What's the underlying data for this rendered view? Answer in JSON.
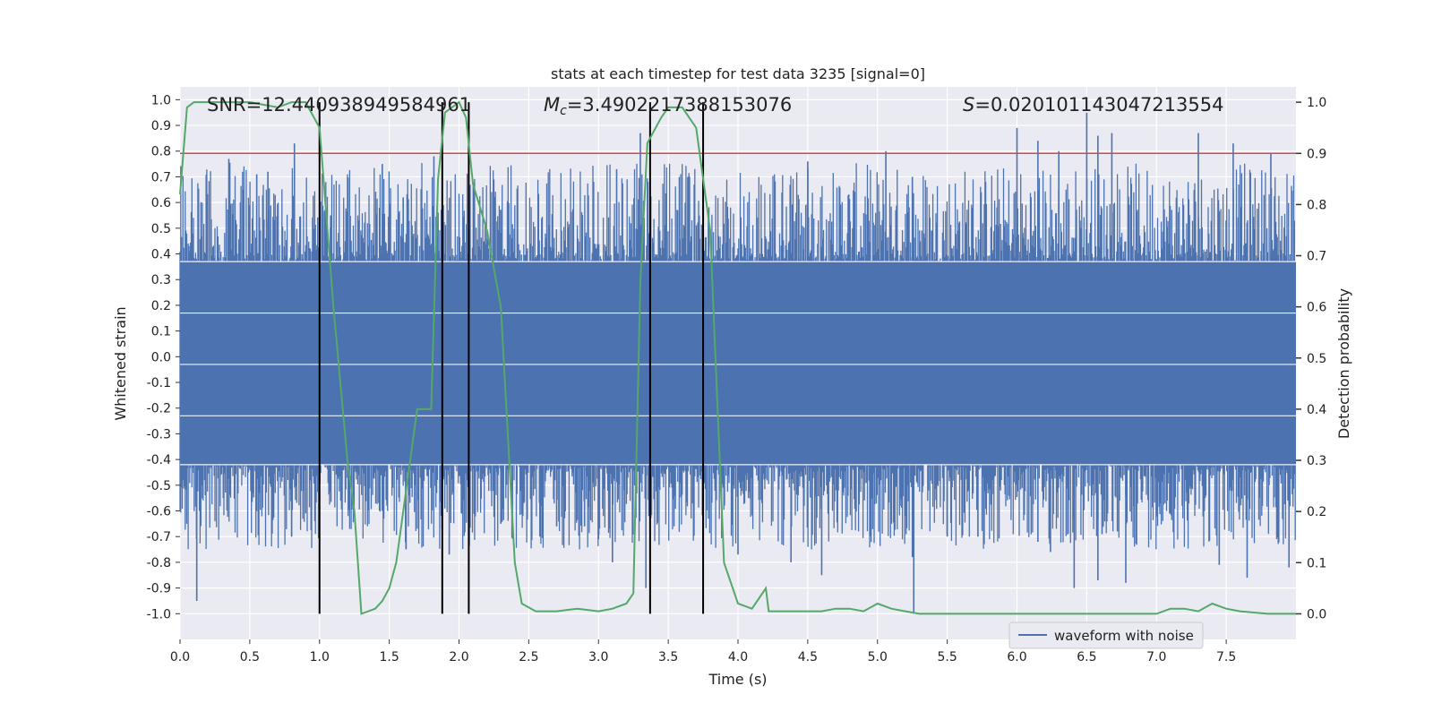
{
  "chart_data": {
    "type": "line",
    "title": "stats at each timestep for test data 3235 [signal=0]",
    "xlabel": "Time (s)",
    "ylabel_left": "Whitened strain",
    "ylabel_right": "Detection probability",
    "xlim": [
      0.0,
      8.0
    ],
    "ylim_left": [
      -1.1,
      1.05
    ],
    "ylim_right": [
      -0.05,
      1.03
    ],
    "x_ticks": [
      0.0,
      0.5,
      1.0,
      1.5,
      2.0,
      2.5,
      3.0,
      3.5,
      4.0,
      4.5,
      5.0,
      5.5,
      6.0,
      6.5,
      7.0,
      7.5
    ],
    "x_tick_labels": [
      "0.0",
      "0.5",
      "1.0",
      "1.5",
      "2.0",
      "2.5",
      "3.0",
      "3.5",
      "4.0",
      "4.5",
      "5.0",
      "5.5",
      "6.0",
      "6.5",
      "7.0",
      "7.5"
    ],
    "left_ticks": [
      1.0,
      0.9,
      0.8,
      0.7,
      0.6,
      0.5,
      0.4,
      0.3,
      0.2,
      0.1,
      0.0,
      -0.1,
      -0.2,
      -0.3,
      -0.4,
      -0.5,
      -0.6,
      -0.7,
      -0.8,
      -0.9,
      -1.0
    ],
    "left_tick_labels": [
      "1.0",
      "0.9",
      "0.8",
      "0.7",
      "0.6",
      "0.5",
      "0.4",
      "0.3",
      "0.2",
      "0.1",
      "0.0",
      "-0.1",
      "-0.2",
      "-0.3",
      "-0.4",
      "-0.5",
      "-0.6",
      "-0.7",
      "-0.8",
      "-0.9",
      "-1.0"
    ],
    "right_ticks": [
      1.0,
      0.9,
      0.8,
      0.7,
      0.6,
      0.5,
      0.4,
      0.3,
      0.2,
      0.1,
      0.0
    ],
    "right_tick_labels": [
      "1.0",
      "0.9",
      "0.8",
      "0.7",
      "0.6",
      "0.5",
      "0.4",
      "0.3",
      "0.2",
      "0.1",
      "0.0"
    ],
    "annotations": {
      "snr": "SNR=12.440938949584961",
      "mc": "=3.4902217388153076",
      "mc_symbol": "M",
      "mc_subscript": "c",
      "s": "=0.020101143047213554",
      "s_symbol": "S"
    },
    "threshold": {
      "value": 0.9,
      "axis": "right",
      "color": "#c44e52"
    },
    "vertical_markers": [
      1.0,
      1.88,
      2.07,
      3.37,
      3.75
    ],
    "series": [
      {
        "name": "waveform with noise",
        "axis": "left",
        "color": "#4c72b0",
        "kind": "noise",
        "duration": 8.0,
        "core_range": [
          -0.42,
          0.37
        ],
        "envelope": 0.55,
        "spikes": [
          {
            "x": 0.12,
            "y": -0.95
          },
          {
            "x": 0.14,
            "y": -0.6
          },
          {
            "x": 0.35,
            "y": 0.77
          },
          {
            "x": 0.55,
            "y": 0.71
          },
          {
            "x": 0.63,
            "y": 0.72
          },
          {
            "x": 0.82,
            "y": 0.83
          },
          {
            "x": 0.8,
            "y": -0.7
          },
          {
            "x": 1.08,
            "y": 0.55
          },
          {
            "x": 1.6,
            "y": 0.62
          },
          {
            "x": 1.45,
            "y": -0.6
          },
          {
            "x": 1.45,
            "y": 0.75
          },
          {
            "x": 1.82,
            "y": 0.78
          },
          {
            "x": 1.62,
            "y": -0.75
          },
          {
            "x": 1.93,
            "y": -0.77
          },
          {
            "x": 2.3,
            "y": -0.65
          },
          {
            "x": 2.58,
            "y": -0.7
          },
          {
            "x": 2.7,
            "y": -0.66
          },
          {
            "x": 2.9,
            "y": -0.66
          },
          {
            "x": 3.0,
            "y": -0.71
          },
          {
            "x": 3.1,
            "y": -0.8
          },
          {
            "x": 3.13,
            "y": 0.73
          },
          {
            "x": 3.3,
            "y": 0.87
          },
          {
            "x": 3.34,
            "y": -0.9
          },
          {
            "x": 3.64,
            "y": 0.7
          },
          {
            "x": 4.0,
            "y": -0.77
          },
          {
            "x": 4.38,
            "y": -0.8
          },
          {
            "x": 4.5,
            "y": 0.76
          },
          {
            "x": 4.6,
            "y": -0.85
          },
          {
            "x": 5.06,
            "y": 0.8
          },
          {
            "x": 5.1,
            "y": -0.65
          },
          {
            "x": 5.26,
            "y": -1.0
          },
          {
            "x": 5.25,
            "y": -0.78
          },
          {
            "x": 5.5,
            "y": -0.7
          },
          {
            "x": 5.72,
            "y": -0.7
          },
          {
            "x": 6.15,
            "y": -0.72
          },
          {
            "x": 6.24,
            "y": -0.76
          },
          {
            "x": 6.5,
            "y": 0.95
          },
          {
            "x": 6.58,
            "y": 0.86
          },
          {
            "x": 6.68,
            "y": 0.87
          },
          {
            "x": 6.61,
            "y": -0.69
          },
          {
            "x": 6.72,
            "y": -0.68
          },
          {
            "x": 6.78,
            "y": -0.88
          },
          {
            "x": 6.0,
            "y": 0.89
          },
          {
            "x": 6.15,
            "y": 0.84
          },
          {
            "x": 6.3,
            "y": 0.8
          },
          {
            "x": 6.41,
            "y": -0.9
          },
          {
            "x": 6.58,
            "y": -0.87
          },
          {
            "x": 7.3,
            "y": 0.87
          },
          {
            "x": 7.45,
            "y": -0.81
          },
          {
            "x": 7.55,
            "y": 0.83
          },
          {
            "x": 7.65,
            "y": -0.86
          },
          {
            "x": 7.82,
            "y": 0.79
          },
          {
            "x": 7.95,
            "y": -0.82
          },
          {
            "x": 7.97,
            "y": 0.52
          },
          {
            "x": 5.25,
            "y": 0.7
          }
        ]
      },
      {
        "name": "detection probability",
        "axis": "right",
        "color": "#55a868",
        "x": [
          0.0,
          0.05,
          0.1,
          0.3,
          0.5,
          0.7,
          0.8,
          0.9,
          1.0,
          1.1,
          1.2,
          1.25,
          1.3,
          1.35,
          1.4,
          1.45,
          1.5,
          1.55,
          1.6,
          1.65,
          1.7,
          1.75,
          1.8,
          1.85,
          1.9,
          1.95,
          2.0,
          2.05,
          2.1,
          2.2,
          2.3,
          2.4,
          2.45,
          2.55,
          2.7,
          2.85,
          3.0,
          3.1,
          3.2,
          3.25,
          3.3,
          3.35,
          3.45,
          3.5,
          3.6,
          3.7,
          3.8,
          3.9,
          4.0,
          4.1,
          4.2,
          4.22,
          4.3,
          4.4,
          4.5,
          4.6,
          4.7,
          4.8,
          4.9,
          5.0,
          5.1,
          5.2,
          5.3,
          5.4,
          5.5,
          6.0,
          6.5,
          7.0,
          7.1,
          7.2,
          7.3,
          7.4,
          7.5,
          7.6,
          7.8,
          8.0
        ],
        "y": [
          0.82,
          0.99,
          1.0,
          1.0,
          1.0,
          0.99,
          1.0,
          1.0,
          0.95,
          0.6,
          0.3,
          0.2,
          0.0,
          0.005,
          0.01,
          0.025,
          0.05,
          0.1,
          0.2,
          0.3,
          0.4,
          0.4,
          0.4,
          0.85,
          0.98,
          0.99,
          1.0,
          0.97,
          0.84,
          0.75,
          0.6,
          0.1,
          0.02,
          0.005,
          0.005,
          0.01,
          0.005,
          0.01,
          0.02,
          0.04,
          0.65,
          0.92,
          0.97,
          0.99,
          0.99,
          0.95,
          0.75,
          0.1,
          0.02,
          0.01,
          0.05,
          0.005,
          0.005,
          0.005,
          0.005,
          0.005,
          0.01,
          0.01,
          0.005,
          0.02,
          0.01,
          0.005,
          0.0,
          0.0,
          0.0,
          0.0,
          0.0,
          0.0,
          0.01,
          0.01,
          0.005,
          0.02,
          0.01,
          0.005,
          0.0,
          0.0
        ]
      }
    ],
    "legend": {
      "location": "lower right",
      "entries": [
        "waveform with noise"
      ]
    }
  },
  "colors": {
    "plot_bg": "#eaeaf2",
    "grid": "#ffffff",
    "wave": "#4c72b0",
    "prob": "#55a868",
    "threshold": "#c44e52",
    "marker": "#000000"
  }
}
